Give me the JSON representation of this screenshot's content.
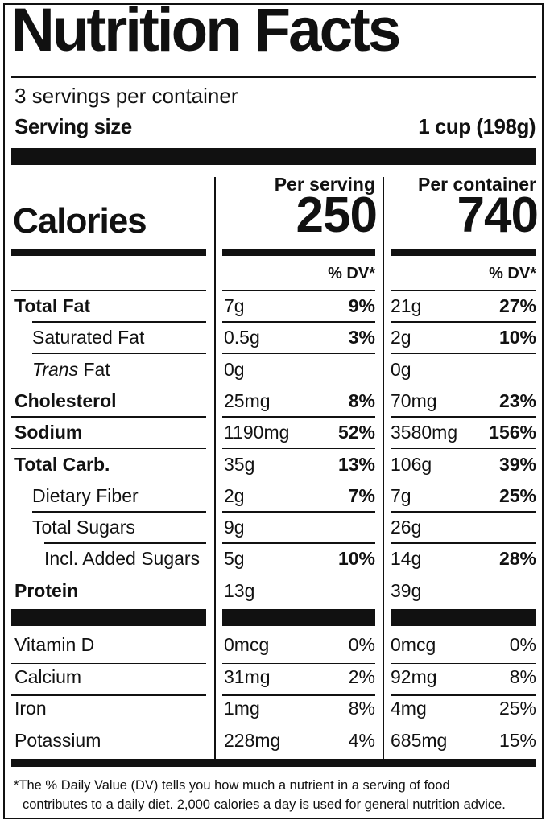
{
  "title": "Nutrition Facts",
  "servings": "3 servings per container",
  "serving_size_label": "Serving size",
  "serving_size_value": "1 cup (198g)",
  "columns": {
    "per_serving": "Per serving",
    "per_container": "Per container"
  },
  "calories": {
    "label": "Calories",
    "per_serving": "250",
    "per_container": "740"
  },
  "dv_header": "% DV*",
  "nutrients": [
    {
      "name": "Total Fat",
      "bold": true,
      "indent": 0,
      "s_amt": "7g",
      "s_dv": "9%",
      "c_amt": "21g",
      "c_dv": "27%"
    },
    {
      "name": "Saturated Fat",
      "bold": false,
      "indent": 1,
      "s_amt": "0.5g",
      "s_dv": "3%",
      "c_amt": "2g",
      "c_dv": "10%"
    },
    {
      "name_italic": "Trans",
      "name": " Fat",
      "bold": false,
      "indent": 1,
      "s_amt": "0g",
      "s_dv": "",
      "c_amt": "0g",
      "c_dv": ""
    },
    {
      "name": "Cholesterol",
      "bold": true,
      "indent": 0,
      "s_amt": "25mg",
      "s_dv": "8%",
      "c_amt": "70mg",
      "c_dv": "23%"
    },
    {
      "name": "Sodium",
      "bold": true,
      "indent": 0,
      "s_amt": "1190mg",
      "s_dv": "52%",
      "c_amt": "3580mg",
      "c_dv": "156%"
    },
    {
      "name": "Total Carb.",
      "bold": true,
      "indent": 0,
      "s_amt": "35g",
      "s_dv": "13%",
      "c_amt": "106g",
      "c_dv": "39%"
    },
    {
      "name": "Dietary Fiber",
      "bold": false,
      "indent": 1,
      "s_amt": "2g",
      "s_dv": "7%",
      "c_amt": "7g",
      "c_dv": "25%"
    },
    {
      "name": "Total Sugars",
      "bold": false,
      "indent": 1,
      "s_amt": "9g",
      "s_dv": "",
      "c_amt": "26g",
      "c_dv": ""
    },
    {
      "name": "Incl. Added Sugars",
      "bold": false,
      "indent": 2,
      "s_amt": "5g",
      "s_dv": "10%",
      "c_amt": "14g",
      "c_dv": "28%"
    },
    {
      "name": "Protein",
      "bold": true,
      "indent": 0,
      "s_amt": "13g",
      "s_dv": "",
      "c_amt": "39g",
      "c_dv": ""
    }
  ],
  "vitamins": [
    {
      "name": "Vitamin D",
      "s_amt": "0mcg",
      "s_dv": "0%",
      "c_amt": "0mcg",
      "c_dv": "0%"
    },
    {
      "name": "Calcium",
      "s_amt": "31mg",
      "s_dv": "2%",
      "c_amt": "92mg",
      "c_dv": "8%"
    },
    {
      "name": "Iron",
      "s_amt": "1mg",
      "s_dv": "8%",
      "c_amt": "4mg",
      "c_dv": "25%"
    },
    {
      "name": "Potassium",
      "s_amt": "228mg",
      "s_dv": "4%",
      "c_amt": "685mg",
      "c_dv": "15%"
    }
  ],
  "footnote": {
    "line1": "*The % Daily Value (DV) tells you how much a nutrient in a serving of food",
    "line2": "contributes to a daily diet. 2,000 calories a day is used for general nutrition advice."
  },
  "colors": {
    "ink": "#111111",
    "background": "#ffffff"
  }
}
